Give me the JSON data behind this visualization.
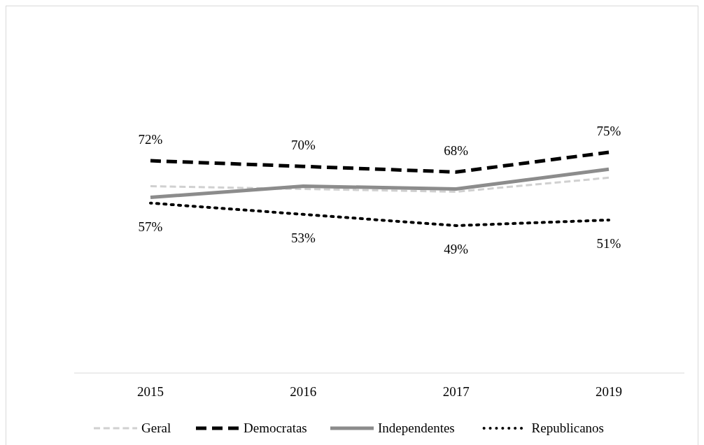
{
  "chart_data": {
    "type": "line",
    "categories": [
      "2015",
      "2016",
      "2017",
      "2019"
    ],
    "series": [
      {
        "name": "Geral",
        "color": "#d0d0d0",
        "line_style": "dashed",
        "values": [
          63,
          62,
          61,
          66
        ]
      },
      {
        "name": "Democratas",
        "color": "#000000",
        "line_style": "dashed",
        "values": [
          72,
          70,
          68,
          75
        ],
        "value_labels": [
          "72%",
          "70%",
          "68%",
          "75%"
        ]
      },
      {
        "name": "Independentes",
        "color": "#8c8c8c",
        "line_style": "solid",
        "values": [
          59,
          63,
          62,
          69
        ]
      },
      {
        "name": "Republicanos",
        "color": "#000000",
        "line_style": "dotted",
        "values": [
          57,
          53,
          49,
          51
        ],
        "value_labels": [
          "57%",
          "53%",
          "49%",
          "51%"
        ]
      }
    ],
    "legend": "bottom",
    "marker": "none"
  }
}
